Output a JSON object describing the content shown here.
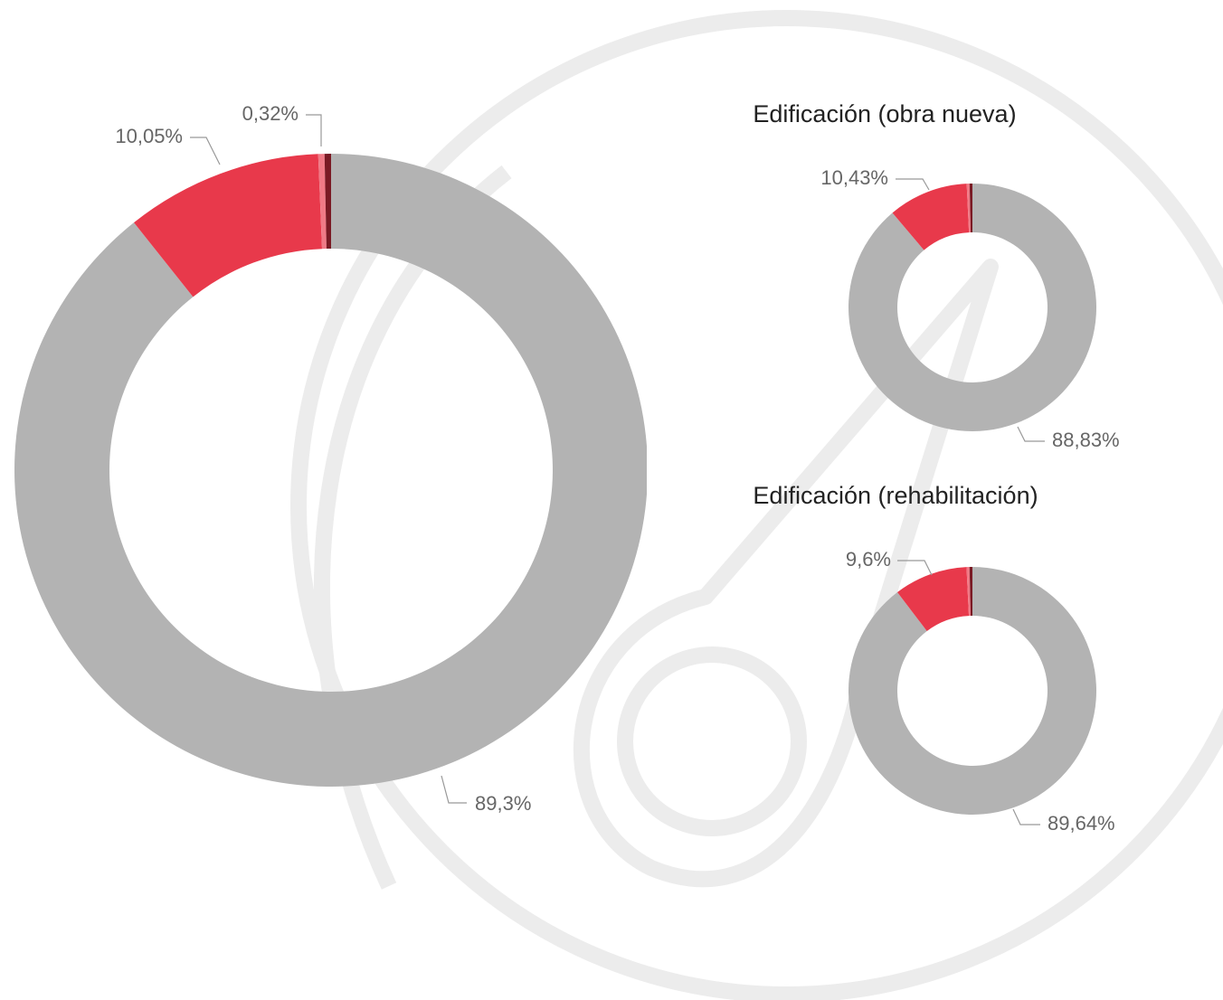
{
  "chart_data": [
    {
      "type": "donut",
      "categories": [
        null,
        null,
        null,
        null
      ],
      "values": [
        89.3,
        10.05,
        0.32,
        0.33
      ],
      "value_labels": [
        "89,3%",
        "10,05%",
        "0,32%",
        null
      ],
      "colors": [
        "#b3b3b3",
        "#e8394b",
        "#f07a86",
        "#7a1a24"
      ]
    },
    {
      "type": "donut",
      "title": "Edificación (obra nueva)",
      "categories": [
        null,
        null,
        null,
        null
      ],
      "values": [
        88.83,
        10.43,
        0.37,
        0.37
      ],
      "value_labels": [
        "88,83%",
        "10,43%",
        null,
        null
      ],
      "colors": [
        "#b3b3b3",
        "#e8394b",
        "#f07a86",
        "#7a1a24"
      ]
    },
    {
      "type": "donut",
      "title": "Edificación (rehabilitación)",
      "categories": [
        null,
        null,
        null,
        null
      ],
      "values": [
        89.64,
        9.6,
        0.38,
        0.38
      ],
      "value_labels": [
        "89,64%",
        "9,6%",
        null,
        null
      ],
      "colors": [
        "#b3b3b3",
        "#e8394b",
        "#f07a86",
        "#7a1a24"
      ]
    }
  ]
}
